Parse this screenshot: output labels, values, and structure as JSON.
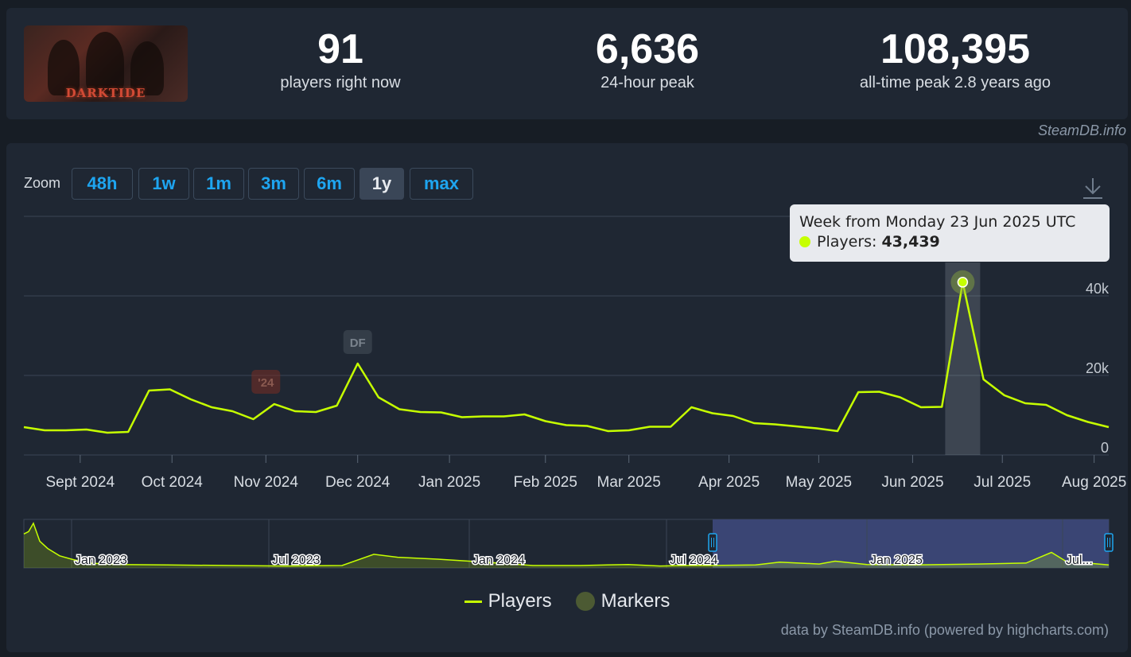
{
  "game": {
    "logo_text": "DARKTIDE"
  },
  "stats": {
    "current": {
      "value": "91",
      "label": "players right now"
    },
    "peak24": {
      "value": "6,636",
      "label": "24-hour peak"
    },
    "alltime": {
      "value": "108,395",
      "label": "all-time peak 2.8 years ago"
    }
  },
  "credit_top": "SteamDB.info",
  "zoom": {
    "label": "Zoom",
    "buttons": [
      "48h",
      "1w",
      "1m",
      "3m",
      "6m",
      "1y",
      "max"
    ],
    "active": "1y"
  },
  "tooltip": {
    "title": "Week from Monday 23 Jun 2025 UTC",
    "series_label": "Players:",
    "value": "43,439"
  },
  "legend": {
    "players": "Players",
    "markers": "Markers"
  },
  "credit_bottom": "data by SteamDB.info (powered by highcharts.com)",
  "colors": {
    "line": "#c6ff00",
    "background": "#1f2733",
    "grid": "#3b4654",
    "navigator_selection": "#3a4574"
  },
  "chart_data": {
    "type": "line",
    "y_ticks": [
      "0",
      "20k",
      "40k"
    ],
    "ylim": [
      0,
      60000
    ],
    "x_ticks": [
      {
        "label": "Sept 2024",
        "week": 2.7
      },
      {
        "label": "Oct 2024",
        "week": 7.1
      },
      {
        "label": "Nov 2024",
        "week": 11.6
      },
      {
        "label": "Dec 2024",
        "week": 16.0
      },
      {
        "label": "Jan 2025",
        "week": 20.4
      },
      {
        "label": "Feb 2025",
        "week": 25.0
      },
      {
        "label": "Mar 2025",
        "week": 29.0
      },
      {
        "label": "Apr 2025",
        "week": 33.8
      },
      {
        "label": "May 2025",
        "week": 38.1
      },
      {
        "label": "Jun 2025",
        "week": 42.6
      },
      {
        "label": "Jul 2025",
        "week": 46.9
      },
      {
        "label": "Aug 2025",
        "week": 51.3
      }
    ],
    "series": [
      {
        "name": "Players",
        "values": [
          7000,
          6200,
          6200,
          6400,
          5600,
          5800,
          16200,
          16500,
          14000,
          12000,
          11000,
          9000,
          12800,
          11000,
          10800,
          12400,
          23000,
          14500,
          11500,
          10800,
          10700,
          9500,
          9700,
          9700,
          10200,
          8500,
          7500,
          7300,
          6000,
          6200,
          7100,
          7100,
          12000,
          10500,
          9800,
          8000,
          7700,
          7200,
          6700,
          6000,
          15800,
          15900,
          14500,
          12000,
          12100,
          43439,
          19000,
          15000,
          13000,
          12600,
          10000,
          8300,
          7000
        ]
      }
    ],
    "markers": [
      {
        "label": "'24",
        "week": 11.6
      },
      {
        "label": "DF",
        "week": 16.0
      }
    ],
    "highlight_week": 45,
    "navigator": {
      "labels": [
        "Jan 2023",
        "Jul 2023",
        "Jan 2024",
        "Jul 2024",
        "Jan 2025",
        "Jul..."
      ]
    }
  }
}
